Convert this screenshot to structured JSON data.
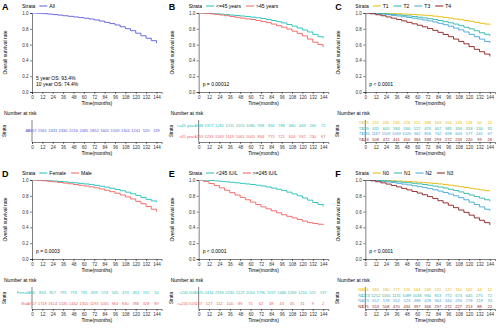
{
  "chart_data": [
    {
      "type": "line",
      "title": "A",
      "line_style": "step",
      "legend": "top",
      "legend_title": "Strata",
      "xlabel": "Time(months)",
      "ylabel": "Overall survival rate",
      "x": [
        0,
        6,
        12,
        18,
        24,
        30,
        36,
        42,
        48,
        54,
        60,
        66,
        72,
        78,
        84,
        90,
        96,
        102,
        108,
        114,
        120,
        126,
        132,
        138,
        144
      ],
      "xlim": [
        0,
        150
      ],
      "xticks": [
        0,
        12,
        24,
        36,
        48,
        60,
        72,
        84,
        96,
        108,
        120,
        132,
        144
      ],
      "ylim": [
        0,
        1
      ],
      "yticks": [
        {
          "value": 0,
          "label": "0.0"
        },
        0.2,
        0.4,
        0.6,
        0.8,
        {
          "value": 1,
          "label": "1.0"
        }
      ],
      "annotations": [
        "5 year OS: 93.4%",
        "10 year OS: 74.4%"
      ],
      "series": [
        {
          "name": "All",
          "color": "#5a5ae0",
          "values": [
            1,
            0.996,
            0.992,
            0.986,
            0.98,
            0.973,
            0.965,
            0.958,
            0.95,
            0.942,
            0.934,
            0.924,
            0.912,
            0.898,
            0.882,
            0.866,
            0.848,
            0.826,
            0.802,
            0.776,
            0.744,
            0.712,
            0.68,
            0.65,
            0.62
          ]
        }
      ],
      "risk_table": {
        "title": "Number at risk",
        "ylabel": "Strata",
        "xlabel": "Time(months)",
        "counts": [
          [
            2607,
            2561,
            2431,
            2330,
            2216,
            2085,
            1852,
            1605,
            1509,
            1304,
            1241,
            520,
            139
          ]
        ]
      }
    },
    {
      "type": "line",
      "title": "B",
      "line_style": "step",
      "legend": "top",
      "legend_title": "Strata",
      "xlabel": "Time(months)",
      "ylabel": "Overall survival rate",
      "x": [
        0,
        6,
        12,
        18,
        24,
        30,
        36,
        42,
        48,
        54,
        60,
        66,
        72,
        78,
        84,
        90,
        96,
        102,
        108,
        114,
        120,
        126,
        132,
        138,
        144
      ],
      "xlim": [
        0,
        150
      ],
      "xticks": [
        0,
        12,
        24,
        36,
        48,
        60,
        72,
        84,
        96,
        108,
        120,
        132,
        144
      ],
      "ylim": [
        0,
        1
      ],
      "yticks": [
        {
          "value": 0,
          "label": "0.0"
        },
        0.2,
        0.4,
        0.6,
        0.8,
        {
          "value": 1,
          "label": "1.0"
        }
      ],
      "annotations": [
        "p = 0.00012"
      ],
      "series": [
        {
          "name": "<=45 years",
          "color": "#1fbfb8",
          "values": [
            1,
            0.997,
            0.994,
            0.99,
            0.985,
            0.98,
            0.974,
            0.968,
            0.962,
            0.955,
            0.948,
            0.94,
            0.93,
            0.918,
            0.905,
            0.89,
            0.874,
            0.855,
            0.834,
            0.81,
            0.785,
            0.76,
            0.73,
            0.7,
            0.68
          ]
        },
        {
          "name": ">45 years",
          "color": "#f0605d",
          "values": [
            1,
            0.995,
            0.99,
            0.983,
            0.975,
            0.966,
            0.956,
            0.946,
            0.936,
            0.926,
            0.918,
            0.906,
            0.893,
            0.878,
            0.86,
            0.84,
            0.82,
            0.796,
            0.77,
            0.742,
            0.71,
            0.67,
            0.63,
            0.6,
            0.57
          ]
        }
      ],
      "risk_table": {
        "title": "Number at risk",
        "ylabel": "Strata",
        "xlabel": "Time(months)",
        "counts": [
          [
            1348,
            1327,
            1262,
            1211,
            1155,
            1080,
            958,
            830,
            788,
            680,
            649,
            290,
            72
          ],
          [
            1259,
            1234,
            1169,
            1119,
            1061,
            1005,
            894,
            775,
            721,
            624,
            592,
            230,
            67
          ]
        ]
      }
    },
    {
      "type": "line",
      "title": "C",
      "line_style": "step",
      "legend": "top",
      "legend_title": "Strata",
      "xlabel": "Time(months)",
      "ylabel": "Overall survival rate",
      "x": [
        0,
        6,
        12,
        18,
        24,
        30,
        36,
        42,
        48,
        54,
        60,
        66,
        72,
        78,
        84,
        90,
        96,
        102,
        108,
        114,
        120,
        126,
        132,
        138,
        144
      ],
      "xlim": [
        0,
        150
      ],
      "xticks": [
        0,
        12,
        24,
        36,
        48,
        60,
        72,
        84,
        96,
        108,
        120,
        132,
        144
      ],
      "ylim": [
        0,
        1
      ],
      "yticks": [
        {
          "value": 0,
          "label": "0.0"
        },
        0.2,
        0.4,
        0.6,
        0.8,
        {
          "value": 1,
          "label": "1.0"
        }
      ],
      "annotations": [
        "p < 0.0001"
      ],
      "series": [
        {
          "name": "T1",
          "color": "#e8b800",
          "values": [
            1,
            1,
            0.998,
            0.996,
            0.994,
            0.992,
            0.99,
            0.987,
            0.984,
            0.98,
            0.976,
            0.972,
            0.966,
            0.96,
            0.952,
            0.944,
            0.935,
            0.925,
            0.915,
            0.905,
            0.895,
            0.88,
            0.87,
            0.86,
            0.85
          ]
        },
        {
          "name": "T2",
          "color": "#2bb6a8",
          "values": [
            1,
            0.998,
            0.995,
            0.991,
            0.987,
            0.982,
            0.977,
            0.97,
            0.963,
            0.955,
            0.947,
            0.938,
            0.928,
            0.917,
            0.905,
            0.89,
            0.876,
            0.86,
            0.84,
            0.82,
            0.8,
            0.775,
            0.75,
            0.73,
            0.71
          ]
        },
        {
          "name": "T3",
          "color": "#3da6d9",
          "values": [
            1,
            0.996,
            0.991,
            0.985,
            0.978,
            0.97,
            0.962,
            0.953,
            0.944,
            0.934,
            0.924,
            0.912,
            0.9,
            0.886,
            0.87,
            0.852,
            0.832,
            0.81,
            0.786,
            0.76,
            0.73,
            0.7,
            0.67,
            0.64,
            0.62
          ]
        },
        {
          "name": "T4",
          "color": "#8e1b1b",
          "values": [
            1,
            0.99,
            0.978,
            0.965,
            0.95,
            0.935,
            0.918,
            0.9,
            0.882,
            0.863,
            0.845,
            0.825,
            0.803,
            0.78,
            0.755,
            0.728,
            0.7,
            0.67,
            0.64,
            0.61,
            0.575,
            0.54,
            0.51,
            0.48,
            0.45
          ]
        }
      ],
      "risk_table": {
        "title": "Number at risk",
        "ylabel": "Strata",
        "xlabel": "Time(months)",
        "counts": [
          [
            259,
            255,
            245,
            236,
            226,
            212,
            188,
            163,
            154,
            134,
            126,
            50,
            11
          ],
          [
            639,
            631,
            605,
            584,
            560,
            527,
            470,
            407,
            385,
            334,
            318,
            130,
            35
          ],
          [
            1185,
            1167,
            1109,
            1069,
            1020,
            962,
            856,
            742,
            698,
            603,
            577,
            241,
            67
          ],
          [
            524,
            508,
            472,
            441,
            410,
            384,
            338,
            293,
            272,
            233,
            220,
            99,
            26
          ]
        ]
      }
    },
    {
      "type": "line",
      "title": "D",
      "line_style": "step",
      "legend": "top",
      "legend_title": "Strata",
      "xlabel": "Time(months)",
      "ylabel": "Overall survival rate",
      "x": [
        0,
        6,
        12,
        18,
        24,
        30,
        36,
        42,
        48,
        54,
        60,
        66,
        72,
        78,
        84,
        90,
        96,
        102,
        108,
        114,
        120,
        126,
        132,
        138,
        144
      ],
      "xlim": [
        0,
        150
      ],
      "xticks": [
        0,
        12,
        24,
        36,
        48,
        60,
        72,
        84,
        96,
        108,
        120,
        132,
        144
      ],
      "ylim": [
        0,
        1
      ],
      "yticks": [
        {
          "value": 0,
          "label": "0.0"
        },
        0.2,
        0.4,
        0.6,
        0.8,
        {
          "value": 1,
          "label": "1.0"
        }
      ],
      "annotations": [
        "p = 0.0003"
      ],
      "series": [
        {
          "name": "Female",
          "color": "#1fbfb8",
          "values": [
            1,
            0.997,
            0.994,
            0.99,
            0.986,
            0.981,
            0.976,
            0.97,
            0.964,
            0.957,
            0.95,
            0.942,
            0.932,
            0.921,
            0.909,
            0.895,
            0.88,
            0.864,
            0.846,
            0.826,
            0.805,
            0.78,
            0.755,
            0.735,
            0.72
          ]
        },
        {
          "name": "Male",
          "color": "#f0605d",
          "values": [
            1,
            0.995,
            0.99,
            0.984,
            0.977,
            0.969,
            0.961,
            0.952,
            0.943,
            0.933,
            0.924,
            0.913,
            0.9,
            0.886,
            0.87,
            0.852,
            0.832,
            0.81,
            0.786,
            0.76,
            0.73,
            0.7,
            0.665,
            0.63,
            0.6
          ]
        }
      ],
      "risk_table": {
        "title": "Number at risk",
        "ylabel": "Strata",
        "xlabel": "Time(months)",
        "counts": [
          [
            850,
            843,
            817,
            795,
            774,
            735,
            659,
            574,
            545,
            474,
            453,
            192,
            50
          ],
          [
            1757,
            1718,
            1614,
            1535,
            1442,
            1350,
            1193,
            1031,
            964,
            830,
            788,
            328,
            89
          ]
        ]
      }
    },
    {
      "type": "line",
      "title": "E",
      "line_style": "step",
      "legend": "top",
      "legend_title": "Strata",
      "xlabel": "Time(months)",
      "ylabel": "Overall survival rate",
      "x": [
        0,
        6,
        12,
        18,
        24,
        30,
        36,
        42,
        48,
        54,
        60,
        66,
        72,
        78,
        84,
        90,
        96,
        102,
        108,
        114,
        120,
        126,
        132,
        138,
        144
      ],
      "xlim": [
        0,
        150
      ],
      "xticks": [
        0,
        12,
        24,
        36,
        48,
        60,
        72,
        84,
        96,
        108,
        120,
        132,
        144
      ],
      "ylim": [
        0,
        1
      ],
      "yticks": [
        {
          "value": 0,
          "label": "0.0"
        },
        0.2,
        0.4,
        0.6,
        0.8,
        {
          "value": 1,
          "label": "1.0"
        }
      ],
      "annotations": [
        "p < 0.0001"
      ],
      "series": [
        {
          "name": "<245 IU/L",
          "color": "#1fbfb8",
          "values": [
            1,
            0.997,
            0.994,
            0.989,
            0.983,
            0.977,
            0.971,
            0.964,
            0.957,
            0.95,
            0.943,
            0.934,
            0.924,
            0.912,
            0.898,
            0.883,
            0.866,
            0.846,
            0.824,
            0.8,
            0.772,
            0.745,
            0.715,
            0.69,
            0.665
          ]
        },
        {
          "name": ">=245 IU/L",
          "color": "#f0605d",
          "values": [
            1,
            0.98,
            0.955,
            0.93,
            0.9,
            0.87,
            0.84,
            0.81,
            0.78,
            0.75,
            0.72,
            0.69,
            0.66,
            0.635,
            0.61,
            0.585,
            0.56,
            0.54,
            0.52,
            0.5,
            0.48,
            0.46,
            0.45,
            0.44,
            0.43
          ]
        }
      ],
      "risk_table": {
        "title": "Number at risk",
        "ylabel": "Strata",
        "xlabel": "Time(months)",
        "counts": [
          [
            2470,
            2434,
            2319,
            2230,
            2127,
            2010,
            1790,
            1557,
            1466,
            1269,
            1210,
            511,
            137
          ],
          [
            137,
            127,
            112,
            100,
            89,
            75,
            62,
            48,
            43,
            35,
            31,
            9,
            2
          ]
        ]
      }
    },
    {
      "type": "line",
      "title": "F",
      "line_style": "step",
      "legend": "top",
      "legend_title": "Strata",
      "xlabel": "Time(months)",
      "ylabel": "Overall survival rate",
      "x": [
        0,
        6,
        12,
        18,
        24,
        30,
        36,
        42,
        48,
        54,
        60,
        66,
        72,
        78,
        84,
        90,
        96,
        102,
        108,
        114,
        120,
        126,
        132,
        138,
        144
      ],
      "xlim": [
        0,
        150
      ],
      "xticks": [
        0,
        12,
        24,
        36,
        48,
        60,
        72,
        84,
        96,
        108,
        120,
        132,
        144
      ],
      "ylim": [
        0,
        1
      ],
      "yticks": [
        {
          "value": 0,
          "label": "0.0"
        },
        0.2,
        0.4,
        0.6,
        0.8,
        {
          "value": 1,
          "label": "1.0"
        }
      ],
      "annotations": [
        "p < 0.0001"
      ],
      "series": [
        {
          "name": "N0",
          "color": "#e8b800",
          "values": [
            1,
            1,
            0.998,
            0.996,
            0.993,
            0.99,
            0.987,
            0.984,
            0.98,
            0.976,
            0.972,
            0.967,
            0.962,
            0.956,
            0.95,
            0.942,
            0.934,
            0.925,
            0.915,
            0.905,
            0.895,
            0.885,
            0.875,
            0.865,
            0.855
          ]
        },
        {
          "name": "N1",
          "color": "#2bb6a8",
          "values": [
            1,
            0.998,
            0.995,
            0.991,
            0.987,
            0.982,
            0.977,
            0.971,
            0.965,
            0.958,
            0.951,
            0.943,
            0.934,
            0.923,
            0.911,
            0.898,
            0.883,
            0.867,
            0.849,
            0.83,
            0.81,
            0.79,
            0.77,
            0.75,
            0.73
          ]
        },
        {
          "name": "N2",
          "color": "#3da6d9",
          "values": [
            1,
            0.995,
            0.99,
            0.983,
            0.975,
            0.967,
            0.958,
            0.948,
            0.938,
            0.927,
            0.916,
            0.904,
            0.891,
            0.876,
            0.86,
            0.842,
            0.822,
            0.8,
            0.776,
            0.75,
            0.72,
            0.69,
            0.66,
            0.63,
            0.61
          ]
        },
        {
          "name": "N3",
          "color": "#8e1b1b",
          "values": [
            1,
            0.99,
            0.978,
            0.964,
            0.948,
            0.931,
            0.913,
            0.894,
            0.875,
            0.855,
            0.835,
            0.813,
            0.79,
            0.765,
            0.738,
            0.71,
            0.68,
            0.65,
            0.62,
            0.59,
            0.555,
            0.52,
            0.49,
            0.46,
            0.43
          ]
        }
      ],
      "risk_table": {
        "title": "Number at risk",
        "ylabel": "Strata",
        "xlabel": "Time(months)",
        "counts": [
          [
            186,
            184,
            180,
            177,
            170,
            164,
            148,
            131,
            125,
            110,
            105,
            44,
            12
          ],
          [
            1223,
            1212,
            1165,
            1131,
            1089,
            1036,
            930,
            813,
            772,
            673,
            645,
            270,
            72
          ],
          [
            623,
            612,
            578,
            552,
            523,
            488,
            428,
            364,
            340,
            294,
            278,
            118,
            33
          ],
          [
            575,
            553,
            508,
            470,
            434,
            397,
            346,
            297,
            272,
            227,
            213,
            88,
            22
          ]
        ]
      }
    }
  ]
}
